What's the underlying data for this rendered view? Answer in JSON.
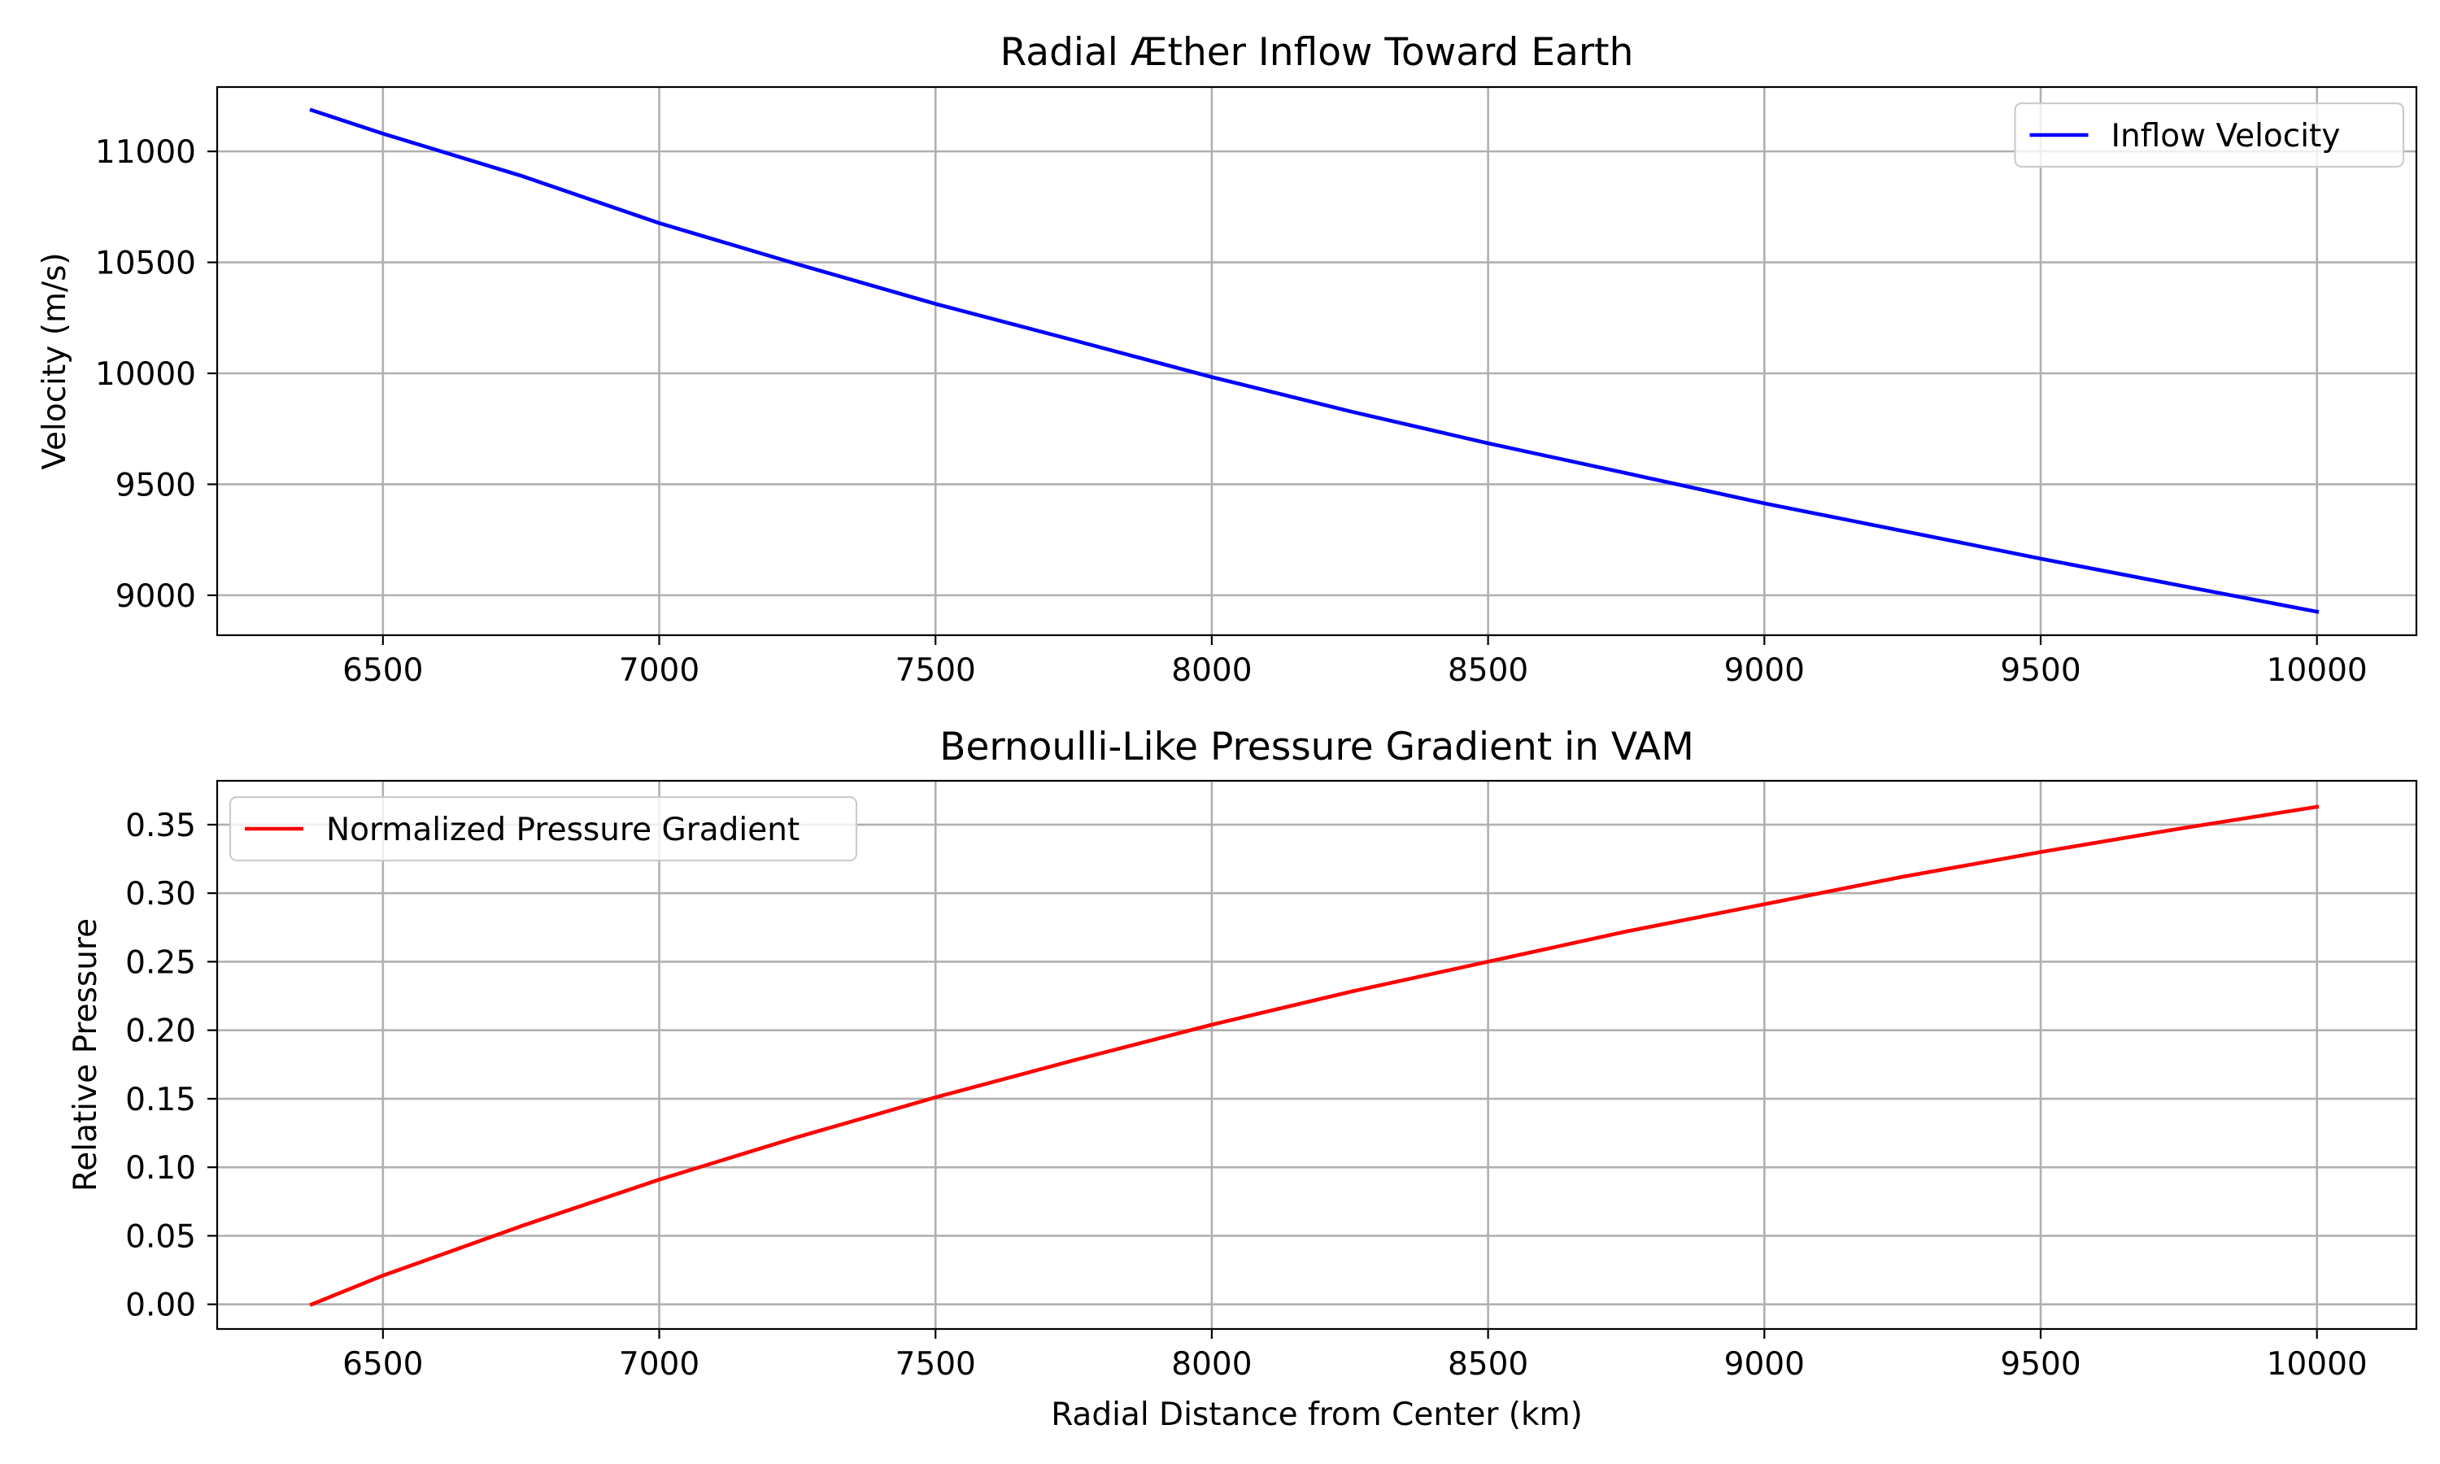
{
  "chart_data": [
    {
      "type": "line",
      "title": "Radial Æther Inflow Toward Earth",
      "xlabel": "",
      "ylabel": "Velocity (m/s)",
      "xlim": [
        6200,
        10180
      ],
      "ylim": [
        8820,
        11290
      ],
      "xticks": [
        6500,
        7000,
        7500,
        8000,
        8500,
        9000,
        9500,
        10000
      ],
      "yticks": [
        9000,
        9500,
        10000,
        10500,
        11000
      ],
      "grid": true,
      "legend_position": "upper right",
      "series": [
        {
          "name": "Inflow Velocity",
          "color": "#0000ff",
          "x": [
            6371,
            6500,
            6750,
            7000,
            7250,
            7500,
            7750,
            8000,
            8250,
            8500,
            8750,
            9000,
            9250,
            9500,
            9750,
            10000
          ],
          "y": [
            11186,
            11080,
            10890,
            10677,
            10492,
            10313,
            10149,
            9983,
            9829,
            9685,
            9550,
            9414,
            9290,
            9165,
            9045,
            8926
          ]
        }
      ]
    },
    {
      "type": "line",
      "title": "Bernoulli-Like Pressure Gradient in VAM",
      "xlabel": "Radial Distance from Center (km)",
      "ylabel": "Relative Pressure",
      "xlim": [
        6200,
        10180
      ],
      "ylim": [
        -0.018,
        0.382
      ],
      "xticks": [
        6500,
        7000,
        7500,
        8000,
        8500,
        9000,
        9500,
        10000
      ],
      "yticks": [
        "0.00",
        "0.05",
        "0.10",
        "0.15",
        "0.20",
        "0.25",
        "0.30",
        "0.35"
      ],
      "grid": true,
      "legend_position": "upper left",
      "series": [
        {
          "name": "Normalized Pressure Gradient",
          "color": "#ff0000",
          "x": [
            6371,
            6500,
            6750,
            7000,
            7250,
            7500,
            7750,
            8000,
            8250,
            8500,
            8750,
            9000,
            9250,
            9500,
            9750,
            10000
          ],
          "y": [
            0.0,
            0.021,
            0.057,
            0.091,
            0.122,
            0.151,
            0.178,
            0.204,
            0.228,
            0.25,
            0.272,
            0.292,
            0.312,
            0.33,
            0.347,
            0.363
          ]
        }
      ]
    }
  ]
}
